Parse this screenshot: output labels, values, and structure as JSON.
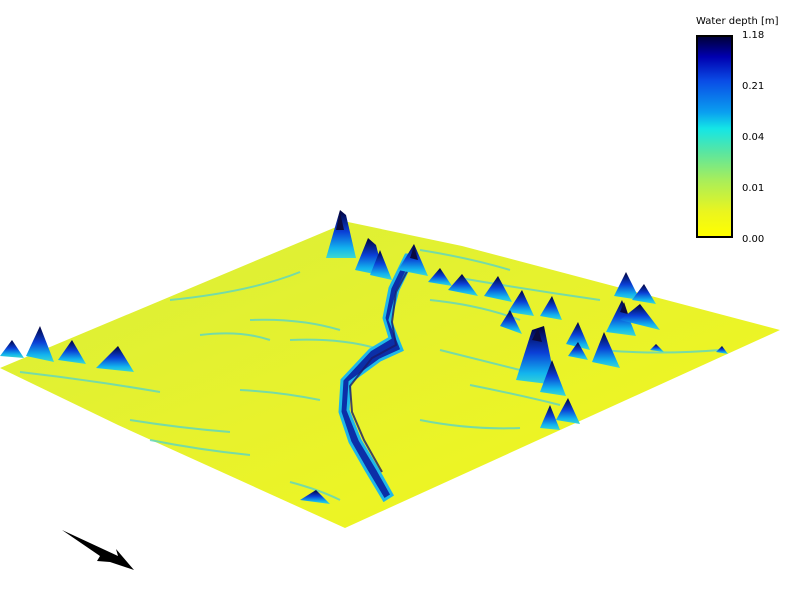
{
  "legend": {
    "title": "Water depth [m]",
    "ticks": [
      "1.18",
      "0.21",
      "0.04",
      "0.01",
      "0.00"
    ]
  },
  "colors": {
    "low": "#ffff00",
    "mid": "#14e6e6",
    "high": "#0000b0",
    "peak": "#00003a"
  },
  "icons": {
    "orientation": "north-arrow-icon"
  }
}
